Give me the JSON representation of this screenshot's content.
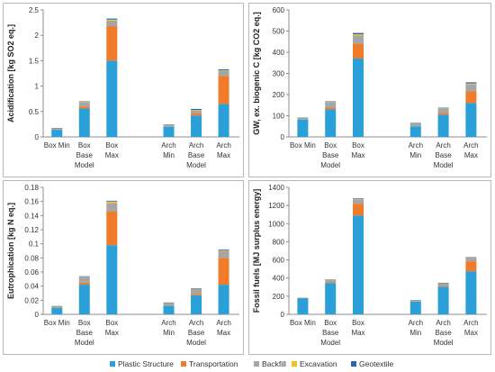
{
  "chart_data": {
    "type": "bar",
    "stacked": true,
    "categories": [
      [
        "Box Min"
      ],
      [
        "Box",
        "Base",
        "Model"
      ],
      [
        "Box",
        "Max"
      ],
      [
        "Arch",
        "Min"
      ],
      [
        "Arch",
        "Base",
        "Model"
      ],
      [
        "Arch",
        "Max"
      ]
    ],
    "legend": {
      "placement": "bottom",
      "items": [
        "Plastic Structure",
        "Transportation",
        "Backfill",
        "Excavation",
        "Geotextile"
      ]
    },
    "colors": {
      "Plastic Structure": "#2a9fd8",
      "Transportation": "#f07b2b",
      "Backfill": "#a6a6a6",
      "Excavation": "#f2c11d",
      "Geotextile": "#2a66b5"
    },
    "panels": [
      {
        "ylabel": "Acidification [kg SO2 eq.]",
        "ylim": [
          0,
          2.5
        ],
        "yticks": [
          "0",
          "0.5",
          "1",
          "1.5",
          "2",
          "2.5"
        ],
        "series": [
          {
            "name": "Plastic Structure",
            "values": [
              0.14,
              0.56,
              1.5,
              0.2,
              0.42,
              0.65
            ]
          },
          {
            "name": "Transportation",
            "values": [
              0.0,
              0.04,
              0.68,
              0.0,
              0.04,
              0.55
            ]
          },
          {
            "name": "Backfill",
            "values": [
              0.02,
              0.08,
              0.11,
              0.03,
              0.06,
              0.1
            ]
          },
          {
            "name": "Excavation",
            "values": [
              0.005,
              0.01,
              0.02,
              0.005,
              0.01,
              0.01
            ]
          },
          {
            "name": "Geotextile",
            "values": [
              0.01,
              0.01,
              0.02,
              0.01,
              0.02,
              0.02
            ]
          }
        ]
      },
      {
        "ylabel": "GW, ex. biogenic C [kg CO2 eq.]",
        "ylim": [
          0,
          600
        ],
        "yticks": [
          "0",
          "100",
          "200",
          "300",
          "400",
          "500",
          "600"
        ],
        "series": [
          {
            "name": "Plastic Structure",
            "values": [
              82,
              130,
              370,
              50,
              105,
              160
            ]
          },
          {
            "name": "Transportation",
            "values": [
              0,
              8,
              70,
              0,
              8,
              55
            ]
          },
          {
            "name": "Backfill",
            "values": [
              5,
              25,
              40,
              12,
              20,
              35
            ]
          },
          {
            "name": "Excavation",
            "values": [
              1,
              2,
              5,
              1,
              2,
              3
            ]
          },
          {
            "name": "Geotextile",
            "values": [
              3,
              3,
              6,
              3,
              3,
              5
            ]
          }
        ]
      },
      {
        "ylabel": "Eutrophication [kg N eq.]",
        "ylim": [
          0,
          0.18
        ],
        "yticks": [
          "0",
          "0.02",
          "0.04",
          "0.06",
          "0.08",
          "0.1",
          "0.12",
          "0.14",
          "0.16",
          "0.18"
        ],
        "series": [
          {
            "name": "Plastic Structure",
            "values": [
              0.009,
              0.042,
              0.098,
              0.012,
              0.027,
              0.042
            ]
          },
          {
            "name": "Transportation",
            "values": [
              0.0,
              0.003,
              0.048,
              0.0,
              0.002,
              0.038
            ]
          },
          {
            "name": "Backfill",
            "values": [
              0.002,
              0.008,
              0.012,
              0.004,
              0.007,
              0.01
            ]
          },
          {
            "name": "Excavation",
            "values": [
              0.0003,
              0.0005,
              0.002,
              0.0003,
              0.0005,
              0.001
            ]
          },
          {
            "name": "Geotextile",
            "values": [
              0.0005,
              0.0005,
              0.001,
              0.0005,
              0.0005,
              0.001
            ]
          }
        ]
      },
      {
        "ylabel": "Fossil fuels [MJ surplus energy]",
        "ylim": [
          0,
          1400
        ],
        "yticks": [
          "0",
          "200",
          "400",
          "600",
          "800",
          "1000",
          "1200",
          "1400"
        ],
        "series": [
          {
            "name": "Plastic Structure",
            "values": [
              175,
              345,
              1090,
              140,
              305,
              475
            ]
          },
          {
            "name": "Transportation",
            "values": [
              0,
              8,
              130,
              0,
              8,
              110
            ]
          },
          {
            "name": "Backfill",
            "values": [
              3,
              25,
              45,
              12,
              30,
              35
            ]
          },
          {
            "name": "Excavation",
            "values": [
              1,
              2,
              5,
              1,
              2,
              3
            ]
          },
          {
            "name": "Geotextile",
            "values": [
              2,
              3,
              8,
              3,
              3,
              7
            ]
          }
        ]
      }
    ]
  }
}
